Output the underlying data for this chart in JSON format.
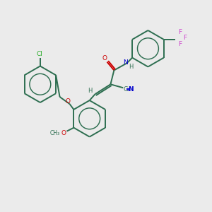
{
  "bg_color": "#ebebeb",
  "bond_color": "#2d6e50",
  "colors": {
    "O": "#cc0000",
    "N": "#0000cc",
    "Cl": "#22aa22",
    "F": "#cc44cc",
    "H": "#2d6e50"
  },
  "figsize": [
    3.0,
    3.0
  ],
  "dpi": 100
}
